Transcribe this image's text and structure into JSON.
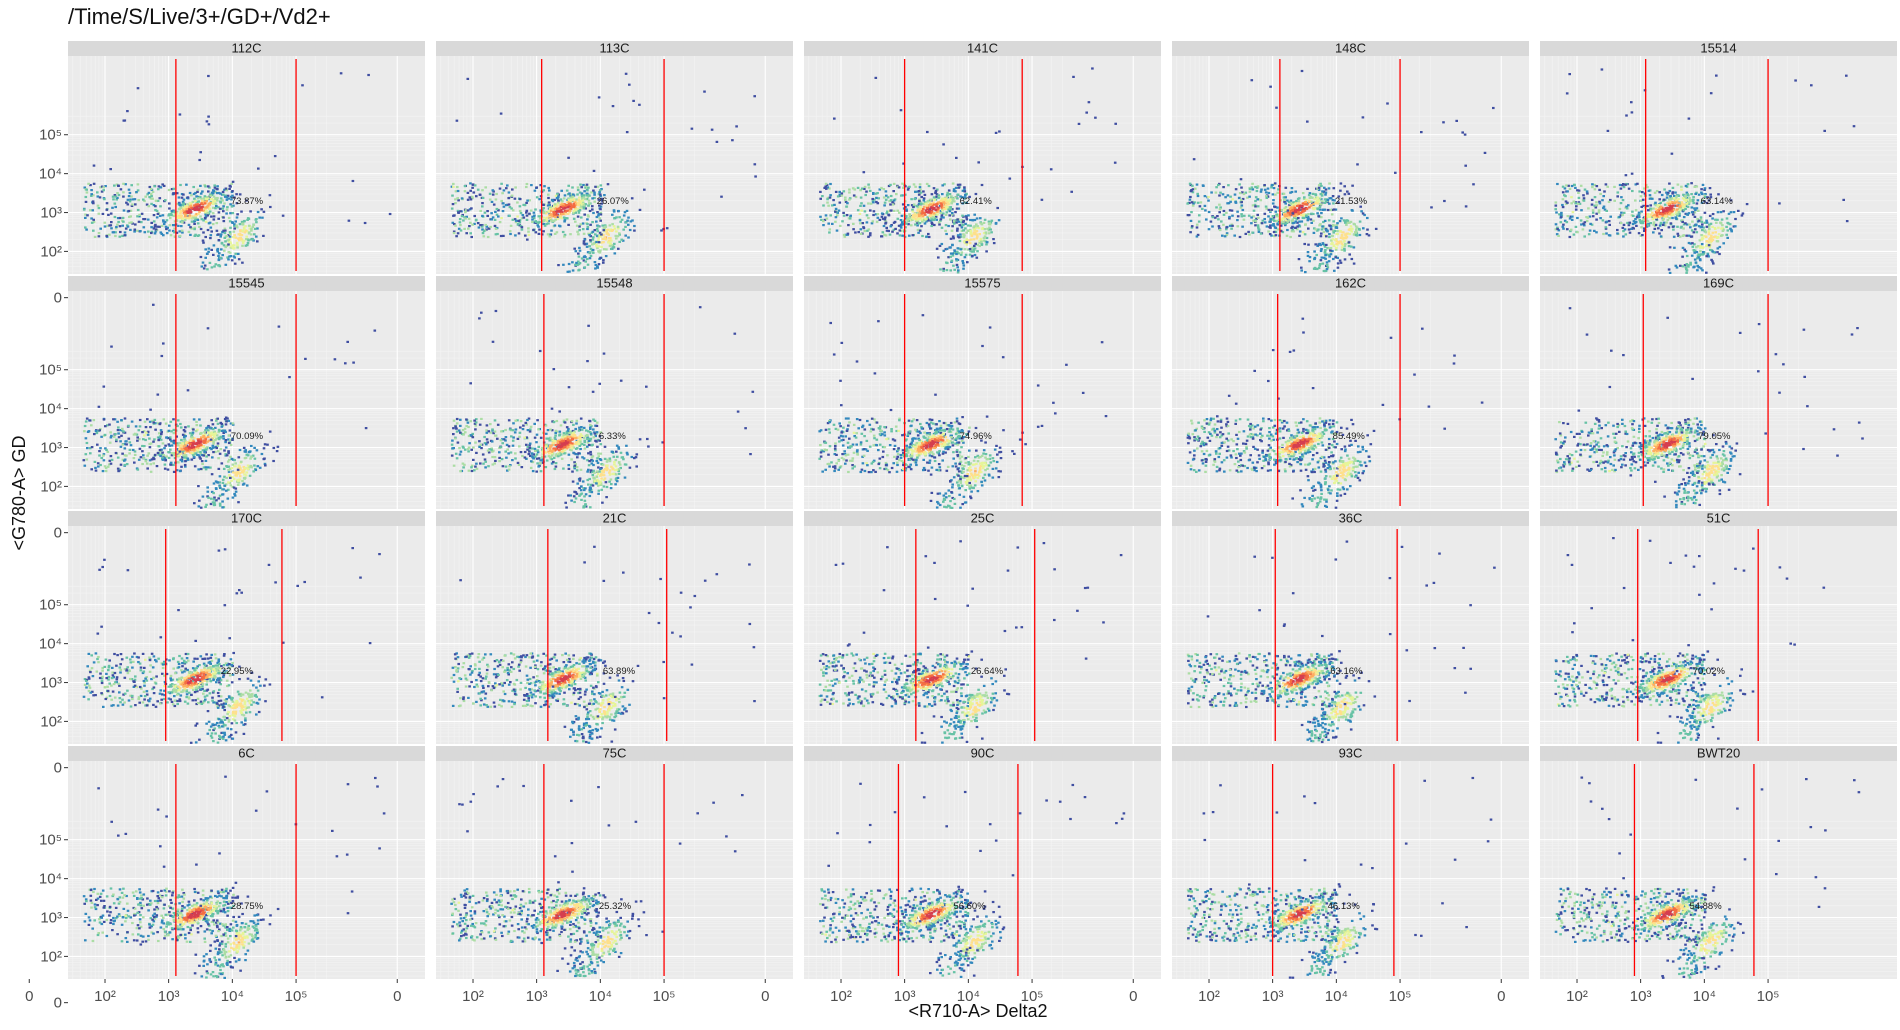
{
  "title": "/Time/S/Live/3+/GD+/Vd2+",
  "chart_data": {
    "type": "scatter",
    "subtype": "flow-cytometry density plot (hexbin), faceted",
    "xlabel": "<R710-A> Delta2",
    "ylabel": "<G780-A> GD",
    "x_scale": "biexponential (logicle)",
    "y_scale": "biexponential (logicle)",
    "x_ticks": [
      "0",
      "10^2",
      "10^3",
      "10^4",
      "10^5"
    ],
    "y_ticks": [
      "0",
      "10^2",
      "10^3",
      "10^4",
      "10^5"
    ],
    "grid": true,
    "legend": "none",
    "gate_line_color": "#ff0000",
    "density_colors": [
      "#3f4ea1",
      "#3288bd",
      "#66c2a5",
      "#abdda4",
      "#e6f598",
      "#fee08b",
      "#fdae61",
      "#f46d43",
      "#d53e4f"
    ],
    "panels": [
      {
        "sample": "112C",
        "gate_percent": "73.87%",
        "gate_x": [
          1300,
          100000
        ]
      },
      {
        "sample": "113C",
        "gate_percent": "26.07%",
        "gate_x": [
          1200,
          100000
        ]
      },
      {
        "sample": "141C",
        "gate_percent": "62.41%",
        "gate_x": [
          1000,
          70000
        ]
      },
      {
        "sample": "148C",
        "gate_percent": "21.53%",
        "gate_x": [
          1300,
          100000
        ]
      },
      {
        "sample": "15514",
        "gate_percent": "63.14%",
        "gate_x": [
          1200,
          100000
        ]
      },
      {
        "sample": "15545",
        "gate_percent": "70.09%",
        "gate_x": [
          1300,
          100000
        ]
      },
      {
        "sample": "15548",
        "gate_percent": "6.33%",
        "gate_x": [
          1300,
          100000
        ]
      },
      {
        "sample": "15575",
        "gate_percent": "74.96%",
        "gate_x": [
          1000,
          70000
        ]
      },
      {
        "sample": "162C",
        "gate_percent": "85.49%",
        "gate_x": [
          1200,
          100000
        ]
      },
      {
        "sample": "169C",
        "gate_percent": "79.05%",
        "gate_x": [
          1100,
          100000
        ]
      },
      {
        "sample": "170C",
        "gate_percent": "22.95%",
        "gate_x": [
          900,
          60000
        ]
      },
      {
        "sample": "21C",
        "gate_percent": "63.89%",
        "gate_x": [
          1500,
          110000
        ]
      },
      {
        "sample": "25C",
        "gate_percent": "26.64%",
        "gate_x": [
          1500,
          110000
        ]
      },
      {
        "sample": "36C",
        "gate_percent": "63.16%",
        "gate_x": [
          1100,
          90000
        ]
      },
      {
        "sample": "51C",
        "gate_percent": "70.02%",
        "gate_x": [
          900,
          70000
        ]
      },
      {
        "sample": "6C",
        "gate_percent": "28.75%",
        "gate_x": [
          1300,
          100000
        ]
      },
      {
        "sample": "75C",
        "gate_percent": "25.32%",
        "gate_x": [
          1300,
          100000
        ]
      },
      {
        "sample": "90C",
        "gate_percent": "56.60%",
        "gate_x": [
          800,
          60000
        ]
      },
      {
        "sample": "93C",
        "gate_percent": "46.13%",
        "gate_x": [
          1000,
          80000
        ]
      },
      {
        "sample": "BWT20",
        "gate_percent": "54.88%",
        "gate_x": [
          800,
          60000
        ]
      }
    ]
  }
}
